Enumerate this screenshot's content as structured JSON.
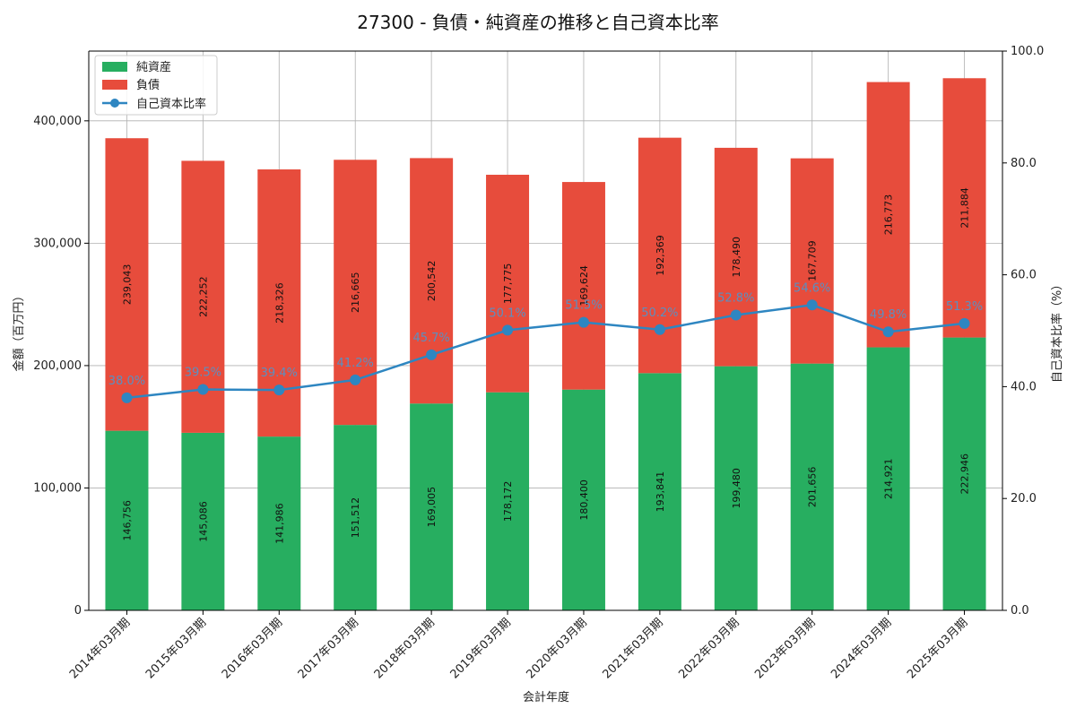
{
  "chart_data": {
    "type": "bar",
    "title": "27300 - 負債・純資産の推移と自己資本比率",
    "xlabel": "会計年度",
    "ylabel": "金額（百万円）",
    "y2label": "自己資本比率（%）",
    "ylim": [
      0,
      457000
    ],
    "y2lim": [
      0,
      100
    ],
    "yticks": [
      0,
      100000,
      200000,
      300000,
      400000
    ],
    "y2ticks": [
      0,
      20,
      40,
      60,
      80,
      100
    ],
    "ytick_labels": [
      "0",
      "100,000",
      "200,000",
      "300,000",
      "400,000"
    ],
    "y2tick_labels": [
      "0.0",
      "20.0",
      "40.0",
      "60.0",
      "80.0",
      "100.0"
    ],
    "grid": true,
    "legend_position": "top-left",
    "categories": [
      "2014年03月期",
      "2015年03月期",
      "2016年03月期",
      "2017年03月期",
      "2018年03月期",
      "2019年03月期",
      "2020年03月期",
      "2021年03月期",
      "2022年03月期",
      "2023年03月期",
      "2024年03月期",
      "2025年03月期"
    ],
    "series": [
      {
        "name": "純資産",
        "type": "bar",
        "stack": "bottom",
        "color": "#27ae60",
        "values": [
          146756,
          145086,
          141986,
          151512,
          169005,
          178172,
          180400,
          193841,
          199480,
          201656,
          214921,
          222946
        ],
        "labels": [
          "146,756",
          "145,086",
          "141,986",
          "151,512",
          "169,005",
          "178,172",
          "180,400",
          "193,841",
          "199,480",
          "201,656",
          "214,921",
          "222,946"
        ]
      },
      {
        "name": "負債",
        "type": "bar",
        "stack": "top",
        "color": "#e74c3c",
        "values": [
          239043,
          222252,
          218326,
          216665,
          200542,
          177775,
          169624,
          192369,
          178490,
          167709,
          216773,
          211884
        ],
        "labels": [
          "239,043",
          "222,252",
          "218,326",
          "216,665",
          "200,542",
          "177,775",
          "169,624",
          "192,369",
          "178,490",
          "167,709",
          "216,773",
          "211,884"
        ]
      },
      {
        "name": "自己資本比率",
        "type": "line",
        "axis": "right",
        "color": "#2e86c1",
        "values": [
          38.0,
          39.5,
          39.4,
          41.2,
          45.7,
          50.1,
          51.5,
          50.2,
          52.8,
          54.6,
          49.8,
          51.3
        ],
        "labels": [
          "38.0%",
          "39.5%",
          "39.4%",
          "41.2%",
          "45.7%",
          "50.1%",
          "51.5%",
          "50.2%",
          "52.8%",
          "54.6%",
          "49.8%",
          "51.3%"
        ]
      }
    ]
  }
}
